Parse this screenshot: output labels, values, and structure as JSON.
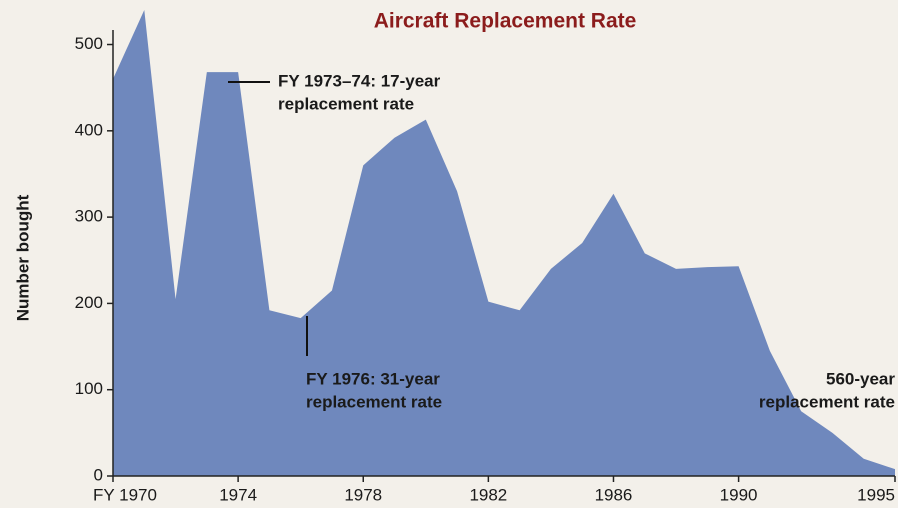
{
  "chart_data": {
    "type": "area",
    "title": "Aircraft Replacement Rate",
    "ylabel": "Number bought",
    "x": [
      1970,
      1971,
      1972,
      1973,
      1974,
      1975,
      1976,
      1977,
      1978,
      1979,
      1980,
      1981,
      1982,
      1983,
      1984,
      1985,
      1986,
      1987,
      1988,
      1989,
      1990,
      1991,
      1992,
      1993,
      1994,
      1995
    ],
    "values": [
      460,
      540,
      205,
      468,
      468,
      192,
      183,
      215,
      360,
      392,
      413,
      330,
      202,
      192,
      240,
      270,
      327,
      258,
      240,
      242,
      243,
      145,
      75,
      50,
      20,
      8
    ],
    "color": "#6f88bd",
    "xlim": [
      1970,
      1995
    ],
    "xticks": [
      {
        "value": 1970,
        "label": "FY 1970"
      },
      1974,
      1978,
      1982,
      1986,
      1990,
      1995
    ],
    "ylim": [
      0,
      540
    ],
    "yticks": [
      0,
      100,
      200,
      300,
      400,
      500
    ],
    "annotations": [
      {
        "lines": [
          "FY 1973–74: 17-year",
          "replacement rate"
        ]
      },
      {
        "lines": [
          "FY 1976: 31-year",
          "replacement rate"
        ]
      },
      {
        "lines": [
          "560-year",
          "replacement rate"
        ]
      }
    ]
  }
}
